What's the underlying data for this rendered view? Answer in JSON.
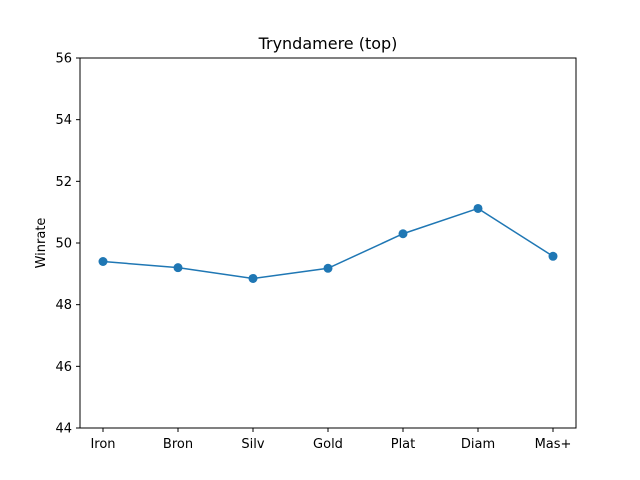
{
  "chart_data": {
    "type": "line",
    "title": "Tryndamere (top)",
    "xlabel": "",
    "ylabel": "Winrate",
    "categories": [
      "Iron",
      "Bron",
      "Silv",
      "Gold",
      "Plat",
      "Diam",
      "Mas+"
    ],
    "values": [
      49.4,
      49.2,
      48.85,
      49.18,
      50.3,
      51.12,
      49.57
    ],
    "ylim": [
      44,
      56
    ],
    "yticks": [
      "44",
      "46",
      "48",
      "50",
      "52",
      "54",
      "56"
    ],
    "grid": false,
    "colors": {
      "series": "#1f77b4",
      "axes": "#000000"
    }
  }
}
